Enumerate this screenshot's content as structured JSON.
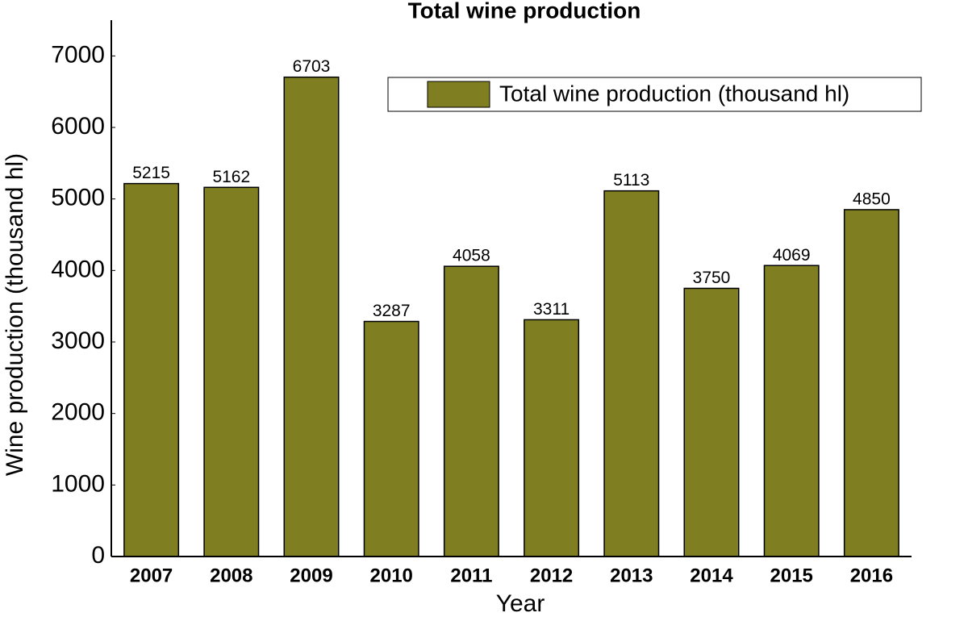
{
  "chart_data": {
    "type": "bar",
    "title": "Total wine production",
    "x_label": "Year",
    "y_label": "Wine production (thousand hl)",
    "categories": [
      "2007",
      "2008",
      "2009",
      "2010",
      "2011",
      "2012",
      "2013",
      "2014",
      "2015",
      "2016"
    ],
    "series": [
      {
        "name": "Total wine production (thousand hl)",
        "color": "#7f7f22",
        "values": [
          5215,
          5162,
          6703,
          3287,
          4058,
          3311,
          5113,
          3750,
          4069,
          4850
        ]
      }
    ],
    "ylim": [
      0,
      7500
    ],
    "yticks": [
      0,
      1000,
      2000,
      3000,
      4000,
      5000,
      6000,
      7000
    ],
    "grid": false,
    "legend": "upper right",
    "data_labels": true
  }
}
